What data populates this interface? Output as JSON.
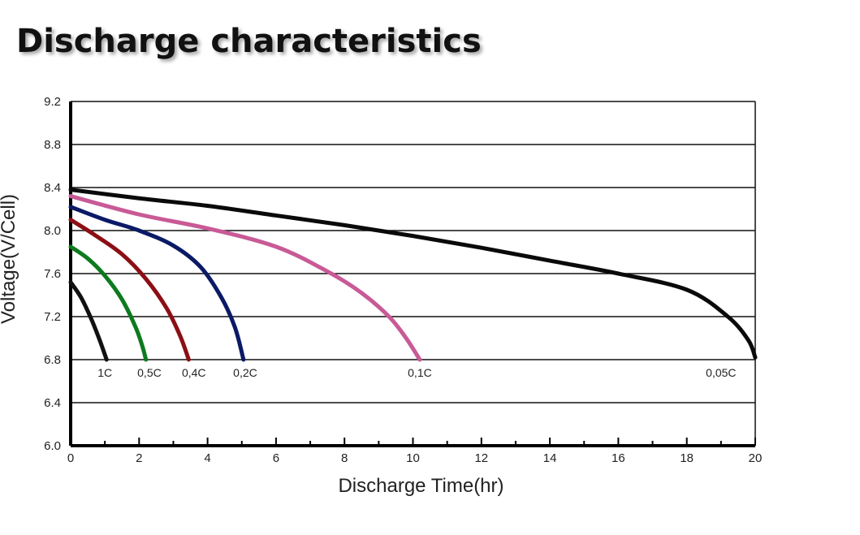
{
  "page": {
    "title": "Discharge characteristics"
  },
  "chart_data": {
    "type": "line",
    "title": "Discharge characteristics",
    "xlabel": "Discharge Time(hr)",
    "ylabel": "Voltage(V/Cell)",
    "xlim": [
      0,
      20
    ],
    "ylim": [
      6.0,
      9.2
    ],
    "x_ticks": [
      "0",
      "2",
      "4",
      "6",
      "8",
      "10",
      "12",
      "14",
      "16",
      "18",
      "20"
    ],
    "y_ticks": [
      "6.0",
      "6.4",
      "6.8",
      "7.2",
      "7.6",
      "8.0",
      "8.4",
      "8.8",
      "9.2"
    ],
    "grid": "horizontal",
    "series": [
      {
        "name": "1C",
        "color": "#111111",
        "points": [
          [
            0,
            7.52
          ],
          [
            0.3,
            7.38
          ],
          [
            0.6,
            7.18
          ],
          [
            0.85,
            6.98
          ],
          [
            1.05,
            6.8
          ]
        ]
      },
      {
        "name": "0.5C",
        "color": "#0d7a1e",
        "points": [
          [
            0,
            7.85
          ],
          [
            0.5,
            7.74
          ],
          [
            1.0,
            7.58
          ],
          [
            1.5,
            7.36
          ],
          [
            1.9,
            7.1
          ],
          [
            2.1,
            6.92
          ],
          [
            2.2,
            6.8
          ]
        ]
      },
      {
        "name": "0.4C",
        "color": "#8b0f14",
        "points": [
          [
            0,
            8.1
          ],
          [
            0.7,
            7.96
          ],
          [
            1.5,
            7.78
          ],
          [
            2.2,
            7.55
          ],
          [
            2.8,
            7.28
          ],
          [
            3.2,
            7.02
          ],
          [
            3.45,
            6.8
          ]
        ]
      },
      {
        "name": "0.2C",
        "color": "#0b1a66",
        "points": [
          [
            0,
            8.22
          ],
          [
            1.0,
            8.1
          ],
          [
            2.0,
            8.0
          ],
          [
            3.0,
            7.86
          ],
          [
            3.8,
            7.66
          ],
          [
            4.4,
            7.38
          ],
          [
            4.8,
            7.1
          ],
          [
            5.05,
            6.8
          ]
        ]
      },
      {
        "name": "0.1C",
        "color": "#c85a96",
        "points": [
          [
            0,
            8.32
          ],
          [
            2,
            8.15
          ],
          [
            4,
            8.02
          ],
          [
            6,
            7.85
          ],
          [
            7.5,
            7.62
          ],
          [
            8.5,
            7.42
          ],
          [
            9.3,
            7.2
          ],
          [
            9.8,
            7.0
          ],
          [
            10.2,
            6.8
          ]
        ]
      },
      {
        "name": "0.05C",
        "color": "#0a0a0a",
        "points": [
          [
            0,
            8.38
          ],
          [
            2,
            8.3
          ],
          [
            4,
            8.23
          ],
          [
            6,
            8.14
          ],
          [
            8,
            8.05
          ],
          [
            10,
            7.95
          ],
          [
            12,
            7.84
          ],
          [
            14,
            7.72
          ],
          [
            16,
            7.6
          ],
          [
            18,
            7.45
          ],
          [
            19.2,
            7.2
          ],
          [
            19.8,
            6.98
          ],
          [
            20,
            6.82
          ]
        ]
      }
    ],
    "curve_labels": [
      {
        "text": "1C",
        "x": 1.0,
        "y": 6.68
      },
      {
        "text": "0,5C",
        "x": 2.3,
        "y": 6.68
      },
      {
        "text": "0,4C",
        "x": 3.6,
        "y": 6.68
      },
      {
        "text": "0,2C",
        "x": 5.1,
        "y": 6.68
      },
      {
        "text": "0,1C",
        "x": 10.2,
        "y": 6.68
      },
      {
        "text": "0,05C",
        "x": 19.0,
        "y": 6.68
      }
    ]
  }
}
